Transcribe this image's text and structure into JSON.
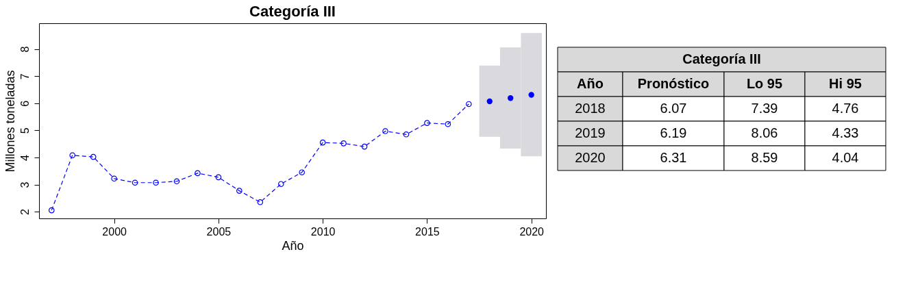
{
  "chart_data": [
    {
      "type": "line",
      "title": "Categoría III",
      "xlabel": "Año",
      "ylabel": "Millones toneladas",
      "xlim": [
        1996.4,
        2020.7
      ],
      "ylim": [
        1.75,
        8.95
      ],
      "xticks": [
        2000,
        2005,
        2010,
        2015,
        2020
      ],
      "yticks": [
        2,
        3,
        4,
        5,
        6,
        7,
        8
      ],
      "grid": false,
      "marker": "circle",
      "line_style": "dashed",
      "series": [
        {
          "type": "line",
          "color": "#0000ff",
          "x": [
            1997,
            1998,
            1999,
            2000,
            2001,
            2002,
            2003,
            2004,
            2005,
            2006,
            2007,
            2008,
            2009,
            2010,
            2011,
            2012,
            2013,
            2014,
            2015,
            2016,
            2017
          ],
          "values": [
            2.05,
            4.08,
            4.02,
            3.22,
            3.07,
            3.07,
            3.12,
            3.42,
            3.27,
            2.77,
            2.35,
            3.02,
            3.45,
            4.55,
            4.52,
            4.4,
            4.97,
            4.85,
            5.27,
            5.23,
            5.97
          ]
        },
        {
          "type": "scatter",
          "color": "#0000ff",
          "x": [
            2018,
            2019,
            2020
          ],
          "values": [
            6.07,
            6.19,
            6.31
          ],
          "errors": [
            [
              4.76,
              7.39
            ],
            [
              4.33,
              8.06
            ],
            [
              4.04,
              8.59
            ]
          ]
        }
      ]
    },
    {
      "type": "other",
      "title": "Categoría III",
      "annotations": [
        "Año",
        "Pronóstico",
        "Lo 95",
        "Hi 95",
        "2018",
        "6.07",
        "7.39",
        "4.76",
        "2019",
        "6.19",
        "8.06",
        "4.33",
        "2020",
        "6.31",
        "8.59",
        "4.04"
      ]
    }
  ]
}
